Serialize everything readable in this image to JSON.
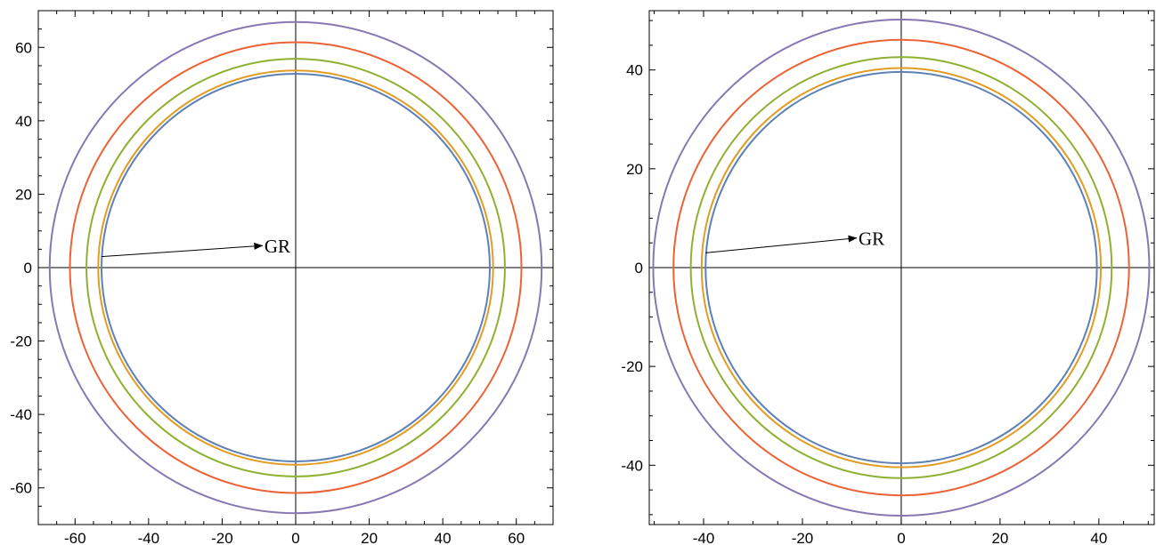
{
  "chart_data": [
    {
      "type": "line",
      "title": "",
      "xlabel": "",
      "ylabel": "",
      "xlim": [
        -70,
        70
      ],
      "ylim": [
        -70,
        70
      ],
      "xticks": [
        -60,
        -40,
        -20,
        0,
        20,
        40,
        60
      ],
      "yticks": [
        -60,
        -40,
        -20,
        0,
        20,
        40,
        60
      ],
      "xtick_labels": [
        "-60",
        "-40",
        "-20",
        "0",
        "20",
        "40",
        "60"
      ],
      "ytick_labels": [
        "-60",
        "-40",
        "-20",
        "0",
        "20",
        "40",
        "60"
      ],
      "grid": false,
      "series": [
        {
          "shape": "circle",
          "radius": 52.8,
          "color": "#5e81b5"
        },
        {
          "shape": "circle",
          "radius": 53.7,
          "color": "#e19c24"
        },
        {
          "shape": "circle",
          "radius": 56.9,
          "color": "#8fb032"
        },
        {
          "shape": "circle",
          "radius": 61.4,
          "color": "#eb6235"
        },
        {
          "shape": "circle",
          "radius": 66.9,
          "color": "#8778b3"
        }
      ],
      "annotation": {
        "text": "GR",
        "arrow_from": [
          -52.8,
          3
        ],
        "arrow_to": [
          -9,
          6
        ]
      }
    },
    {
      "type": "line",
      "title": "",
      "xlabel": "",
      "ylabel": "",
      "xlim": [
        -51,
        51.2
      ],
      "ylim": [
        -52,
        52
      ],
      "xticks": [
        -40,
        -20,
        0,
        20,
        40
      ],
      "yticks": [
        -40,
        -20,
        0,
        20,
        40
      ],
      "xtick_labels": [
        "-40",
        "-20",
        "0",
        "20",
        "40"
      ],
      "ytick_labels": [
        "-40",
        "-20",
        "0",
        "20",
        "40"
      ],
      "grid": false,
      "series": [
        {
          "shape": "circle",
          "radius": 39.6,
          "color": "#5e81b5"
        },
        {
          "shape": "circle",
          "radius": 40.4,
          "color": "#e19c24"
        },
        {
          "shape": "circle",
          "radius": 42.6,
          "color": "#8fb032"
        },
        {
          "shape": "circle",
          "radius": 46.1,
          "color": "#eb6235"
        },
        {
          "shape": "circle",
          "radius": 50.2,
          "color": "#8778b3"
        }
      ],
      "annotation": {
        "text": "GR",
        "arrow_from": [
          -39.6,
          3
        ],
        "arrow_to": [
          -9,
          6
        ]
      }
    }
  ]
}
